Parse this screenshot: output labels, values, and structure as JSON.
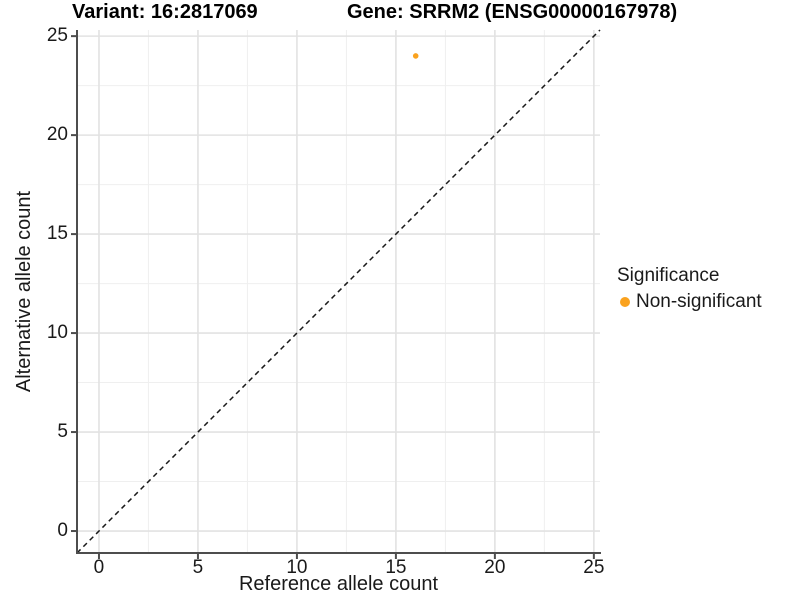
{
  "chart_data": {
    "type": "scatter",
    "title_left": "Variant: 16:2817069",
    "title_right": "Gene: SRRM2 (ENSG00000167978)",
    "xlabel": "Reference allele count",
    "ylabel": "Alternative allele count",
    "xlim": [
      -1.11,
      25.31
    ],
    "ylim": [
      -1.11,
      25.31
    ],
    "xticks": [
      0,
      5,
      10,
      15,
      20,
      25
    ],
    "yticks": [
      0,
      5,
      10,
      15,
      20,
      25
    ],
    "minor_ticks": [
      2.5,
      7.5,
      12.5,
      17.5,
      22.5
    ],
    "grid": "major+minor",
    "points": [
      {
        "x": 16,
        "y": 24,
        "series": "Non-significant"
      }
    ],
    "reference_line": {
      "type": "identity",
      "slope": 1,
      "intercept": 0,
      "style": "dashed"
    },
    "legend": {
      "title": "Significance",
      "position": "right",
      "items": [
        {
          "label": "Non-significant",
          "color": "#FAA21E"
        }
      ]
    },
    "colors": {
      "point": "#FAA21E",
      "grid_major": "#E2E2E2",
      "grid_minor": "#EFEFEF",
      "axis_line": "#4D4D4D",
      "reference_line": "#1A1A1A"
    },
    "point_radius": 2.8
  }
}
